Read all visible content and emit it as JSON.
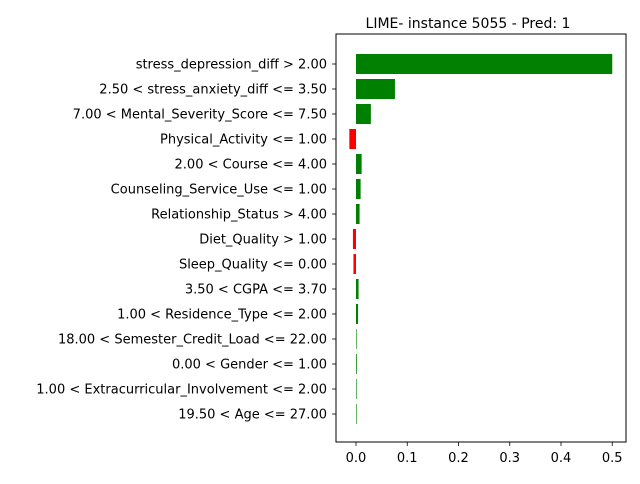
{
  "chart_data": {
    "type": "bar",
    "orientation": "horizontal",
    "title": "LIME- instance 5055 - Pred: 1",
    "xlabel": "",
    "ylabel": "",
    "xlim": [
      -0.035,
      0.53
    ],
    "xticks": [
      0.0,
      0.1,
      0.2,
      0.3,
      0.4,
      0.5
    ],
    "xtick_labels": [
      "0.0",
      "0.1",
      "0.2",
      "0.3",
      "0.4",
      "0.5"
    ],
    "grid": false,
    "legend": "none",
    "colors": {
      "positive": "#008000",
      "negative": "#ff0000"
    },
    "categories": [
      "stress_depression_diff > 2.00",
      "2.50 < stress_anxiety_diff <= 3.50",
      "7.00 < Mental_Severity_Score <= 7.50",
      "Physical_Activity <= 1.00",
      "2.00 < Course <= 4.00",
      "Counseling_Service_Use <= 1.00",
      "Relationship_Status > 4.00",
      "Diet_Quality > 1.00",
      "Sleep_Quality <= 0.00",
      "3.50 < CGPA <= 3.70",
      "1.00 < Residence_Type <= 2.00",
      "18.00 < Semester_Credit_Load <= 22.00",
      "0.00 < Gender <= 1.00",
      "1.00 < Extracurricular_Involvement <= 2.00",
      "19.50 < Age <= 27.00"
    ],
    "values": [
      0.5,
      0.076,
      0.029,
      -0.013,
      0.011,
      0.009,
      0.007,
      -0.006,
      -0.005,
      0.005,
      0.004,
      0.0002,
      0.0015,
      0.0012,
      0.0001
    ]
  }
}
